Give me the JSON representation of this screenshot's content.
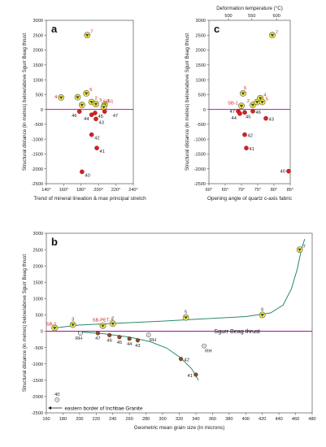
{
  "chart_data": [
    {
      "id": "a",
      "type": "scatter",
      "panel_label": "a",
      "xlabel": "Trend of mineral lineation & max principal stretch",
      "ylabel": "Structural distance (in metres) below/above Sgurr Beag thrust",
      "xlim": [
        140,
        240
      ],
      "ylim": [
        -2500,
        3000
      ],
      "x_ticks": [
        140,
        160,
        180,
        200,
        220,
        240
      ],
      "x_tick_labels": [
        "140°",
        "160°",
        "180°",
        "200°",
        "220°",
        "240°"
      ],
      "y_ticks": [
        -2500,
        -2000,
        -1500,
        -1000,
        -500,
        0,
        500,
        1000,
        1500,
        2000,
        2500,
        3000
      ],
      "y_tick_labels": [
        "-2500",
        "-2000",
        "-1500",
        "-1000",
        "-500",
        "0",
        "500",
        "1000",
        "1500",
        "2000",
        "2500",
        "3000"
      ],
      "reference_line_y": 0,
      "series": [
        {
          "marker": "yellow-triangle",
          "points": [
            {
              "x": 187,
              "y": 2500,
              "label": "7"
            },
            {
              "x": 157,
              "y": 400,
              "label": "4"
            },
            {
              "x": 176,
              "y": 410,
              "label": ""
            },
            {
              "x": 181,
              "y": 150,
              "label": ""
            },
            {
              "x": 186,
              "y": 540,
              "label": "6"
            },
            {
              "x": 192,
              "y": 250,
              "label": "2"
            },
            {
              "x": 197,
              "y": 180,
              "label": "3"
            },
            {
              "x": 207,
              "y": 160,
              "label": "5"
            },
            {
              "x": 206,
              "y": 80,
              "label": "SB-1"
            }
          ]
        },
        {
          "marker": "red-dot",
          "points": [
            {
              "x": 178,
              "y": -70,
              "label": "46"
            },
            {
              "x": 192,
              "y": -180,
              "label": "44"
            },
            {
              "x": 196,
              "y": -120,
              "label": "45"
            },
            {
              "x": 197,
              "y": -320,
              "label": "43"
            },
            {
              "x": 207,
              "y": -70,
              "label": "47"
            },
            {
              "x": 192,
              "y": -850,
              "label": "42"
            },
            {
              "x": 198,
              "y": -1300,
              "label": "41"
            },
            {
              "x": 181,
              "y": -2100,
              "label": "40"
            }
          ]
        }
      ]
    },
    {
      "id": "c",
      "type": "scatter",
      "panel_label": "c",
      "xlabel": "Opening angle of quartz c-axis fabric",
      "top_axis_label": "Deformation temperature (°C)",
      "ylabel": "Structural distance (in metres) below/above Sgurr Beag thrust",
      "xlim": [
        60,
        85
      ],
      "ylim": [
        -2500,
        3000
      ],
      "x_ticks": [
        60,
        65,
        70,
        75,
        80,
        85
      ],
      "x_tick_labels": [
        "60°",
        "65°",
        "70°",
        "75°",
        "80°",
        "85°"
      ],
      "top_ticks_at_x": [
        66,
        73.2,
        80.8
      ],
      "top_tick_labels": [
        "500",
        "550",
        "600"
      ],
      "y_ticks": [
        -2500,
        -2000,
        -1500,
        -1000,
        -500,
        0,
        500,
        1000,
        1500,
        2000,
        2500,
        3000
      ],
      "y_tick_labels": [
        "-2500",
        "-2000",
        "-1500",
        "-1000",
        "-500",
        "0",
        "500",
        "1000",
        "1500",
        "2000",
        "2500",
        "3000"
      ],
      "reference_line_y": 0,
      "series": [
        {
          "marker": "yellow-triangle",
          "points": [
            {
              "x": 79.5,
              "y": 2500,
              "label": "7"
            },
            {
              "x": 70.5,
              "y": 540,
              "label": "6"
            },
            {
              "x": 70,
              "y": 120,
              "label": "SB-1"
            },
            {
              "x": 73.5,
              "y": 150,
              "label": "2"
            },
            {
              "x": 74.8,
              "y": 250,
              "label": "3"
            },
            {
              "x": 75.8,
              "y": 380,
              "label": "4"
            },
            {
              "x": 76.4,
              "y": 250,
              "label": "5"
            }
          ]
        },
        {
          "marker": "red-dot",
          "points": [
            {
              "x": 69,
              "y": -60,
              "label": "47"
            },
            {
              "x": 69.5,
              "y": -140,
              "label": "44"
            },
            {
              "x": 71,
              "y": -100,
              "label": "45"
            },
            {
              "x": 73.5,
              "y": -60,
              "label": "46"
            },
            {
              "x": 77.5,
              "y": -300,
              "label": "43"
            },
            {
              "x": 71,
              "y": -850,
              "label": "42"
            },
            {
              "x": 71.5,
              "y": -1300,
              "label": "41"
            },
            {
              "x": 84.5,
              "y": -2080,
              "label": "40"
            }
          ]
        }
      ]
    },
    {
      "id": "b",
      "type": "scatter",
      "panel_label": "b",
      "xlabel": "Geometric mean grain size (in microns)",
      "ylabel": "Structural distance (in metres) below/above Sgurr Beag thrust",
      "xlim": [
        160,
        480
      ],
      "ylim": [
        -2500,
        3000
      ],
      "x_ticks": [
        160,
        180,
        200,
        220,
        240,
        260,
        280,
        300,
        320,
        340,
        360,
        380,
        400,
        420,
        440,
        460,
        480
      ],
      "x_tick_labels": [
        "160",
        "180",
        "200",
        "220",
        "240",
        "260",
        "280",
        "300",
        "320",
        "340",
        "360",
        "380",
        "400",
        "420",
        "440",
        "460",
        "480"
      ],
      "y_ticks": [
        -2500,
        -2000,
        -1500,
        -1000,
        -500,
        0,
        500,
        1000,
        1500,
        2000,
        2500,
        3000
      ],
      "y_tick_labels": [
        "-2500",
        "-2000",
        "-1500",
        "-1000",
        "-500",
        "0",
        "500",
        "1000",
        "1500",
        "2000",
        "2500",
        "3000"
      ],
      "reference_line_y": 0,
      "reference_line_label": "Sgurr Beag thrust",
      "annotation": "eastern border of Inchbae Granite",
      "series": [
        {
          "marker": "yellow-triangle",
          "points": [
            {
              "x": 170,
              "y": 100,
              "label": "SB-1"
            },
            {
              "x": 192,
              "y": 200,
              "label": "3"
            },
            {
              "x": 228,
              "y": 170,
              "label": "SB-PET-1"
            },
            {
              "x": 240,
              "y": 230,
              "label": "2"
            },
            {
              "x": 328,
              "y": 420,
              "label": "5"
            },
            {
              "x": 420,
              "y": 500,
              "label": "6"
            },
            {
              "x": 465,
              "y": 2500,
              "label": "7"
            }
          ]
        },
        {
          "marker": "brown-dot",
          "points": [
            {
              "x": 222,
              "y": -60,
              "label": "47"
            },
            {
              "x": 236,
              "y": -120,
              "label": "46"
            },
            {
              "x": 248,
              "y": -180,
              "label": "45"
            },
            {
              "x": 260,
              "y": -230,
              "label": "44"
            },
            {
              "x": 270,
              "y": -280,
              "label": "43"
            },
            {
              "x": 322,
              "y": -850,
              "label": "42"
            },
            {
              "x": 340,
              "y": -1330,
              "label": "41"
            }
          ]
        },
        {
          "marker": "open-circle",
          "points": [
            {
              "x": 173,
              "y": -2100,
              "label": "40"
            },
            {
              "x": 201,
              "y": -60,
              "label": "RH"
            },
            {
              "x": 283,
              "y": -110,
              "label": "RH"
            },
            {
              "x": 350,
              "y": -450,
              "label": "RH"
            }
          ]
        }
      ],
      "fit_curves": [
        {
          "points": [
            [
              170,
              100
            ],
            [
              200,
              190
            ],
            [
              250,
              250
            ],
            [
              300,
              310
            ],
            [
              350,
              380
            ],
            [
              400,
              450
            ],
            [
              430,
              560
            ],
            [
              445,
              800
            ],
            [
              455,
              1300
            ],
            [
              462,
              1900
            ],
            [
              467,
              2500
            ],
            [
              471,
              2820
            ]
          ]
        },
        {
          "points": [
            [
              198,
              -20
            ],
            [
              230,
              -80
            ],
            [
              260,
              -180
            ],
            [
              285,
              -320
            ],
            [
              305,
              -520
            ],
            [
              322,
              -820
            ],
            [
              335,
              -1150
            ],
            [
              343,
              -1500
            ]
          ]
        }
      ]
    }
  ],
  "colors": {
    "yellow_fill": "#f2ee3a",
    "red_dot": "#d62020",
    "brown_dot": "#8a4a2a",
    "thrust_line": "#b01aa8",
    "fit_curve": "#2a8a6a",
    "label_red": "#d62020"
  }
}
